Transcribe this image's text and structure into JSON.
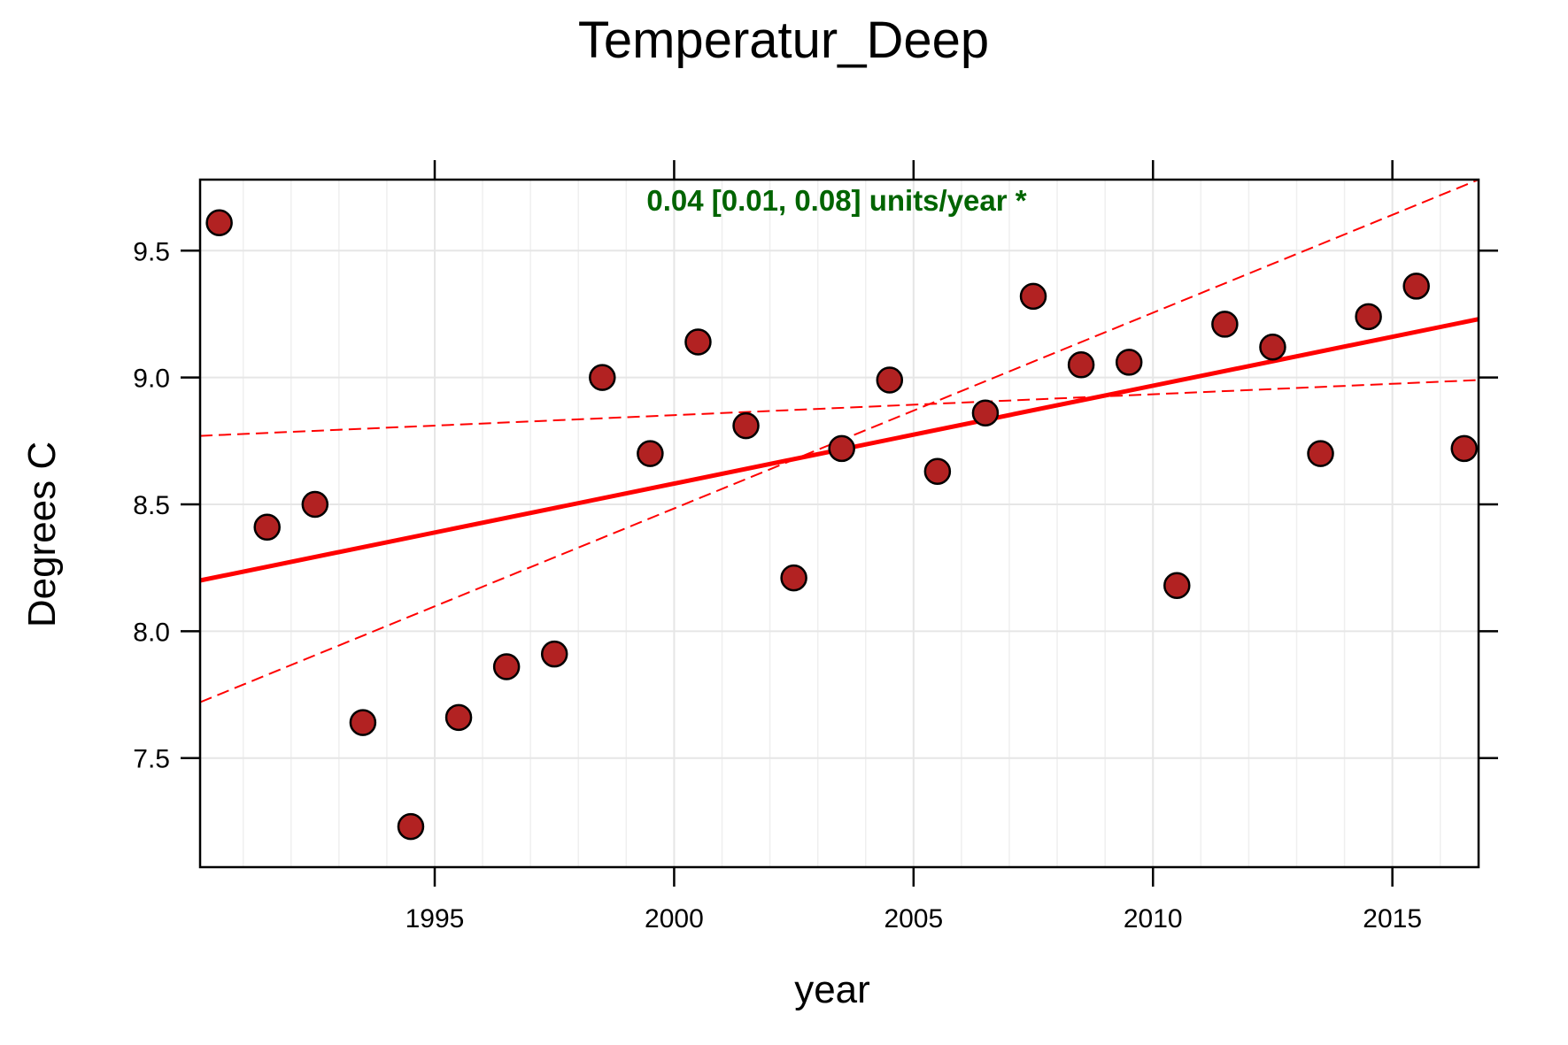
{
  "chart_data": {
    "type": "scatter",
    "title": "Temperatur_Deep",
    "xlabel": "year",
    "ylabel": "Degrees C",
    "xlim": [
      1990.1,
      2016.8
    ],
    "ylim": [
      7.07,
      9.78
    ],
    "grid": true,
    "x_ticks": [
      1995,
      2000,
      2005,
      2010,
      2015
    ],
    "x_tick_labels": [
      "1995",
      "2000",
      "2005",
      "2010",
      "2015"
    ],
    "x_minor_grid": [
      1991,
      1992,
      1993,
      1994,
      1995,
      1996,
      1997,
      1998,
      1999,
      2000,
      2001,
      2002,
      2003,
      2004,
      2005,
      2006,
      2007,
      2008,
      2009,
      2010,
      2011,
      2012,
      2013,
      2014,
      2015,
      2016
    ],
    "y_ticks": [
      7.5,
      8.0,
      8.5,
      9.0,
      9.5
    ],
    "y_tick_labels": [
      "7.5",
      "8.0",
      "8.5",
      "9.0",
      "9.5"
    ],
    "series": [
      {
        "x": [
          1990.5,
          1991.5,
          1992.5,
          1993.5,
          1994.5,
          1995.5,
          1996.5,
          1997.5,
          1998.5,
          1999.5,
          2000.5,
          2001.5,
          2002.5,
          2003.5,
          2004.5,
          2005.5,
          2006.5,
          2007.5,
          2008.5,
          2009.5,
          2010.5,
          2011.5,
          2012.5,
          2013.5,
          2014.5,
          2015.5,
          2016.5
        ],
        "y": [
          9.61,
          8.41,
          8.5,
          7.64,
          7.23,
          7.66,
          7.86,
          7.91,
          9.0,
          8.7,
          9.14,
          8.81,
          8.21,
          8.72,
          8.99,
          8.63,
          8.86,
          9.32,
          9.05,
          9.06,
          8.18,
          9.21,
          9.12,
          8.7,
          9.24,
          9.36,
          8.72
        ],
        "color": "#b22222"
      }
    ],
    "trend": {
      "x_range": [
        1990.1,
        2016.8
      ],
      "fit": [
        8.2,
        9.23
      ],
      "lower_ci": [
        8.77,
        8.99
      ],
      "upper_ci": [
        7.72,
        9.78
      ],
      "color": "#ff0000"
    },
    "annotation": {
      "text": "0.04 [0.01, 0.08] units/year *",
      "color": "#006400"
    }
  }
}
